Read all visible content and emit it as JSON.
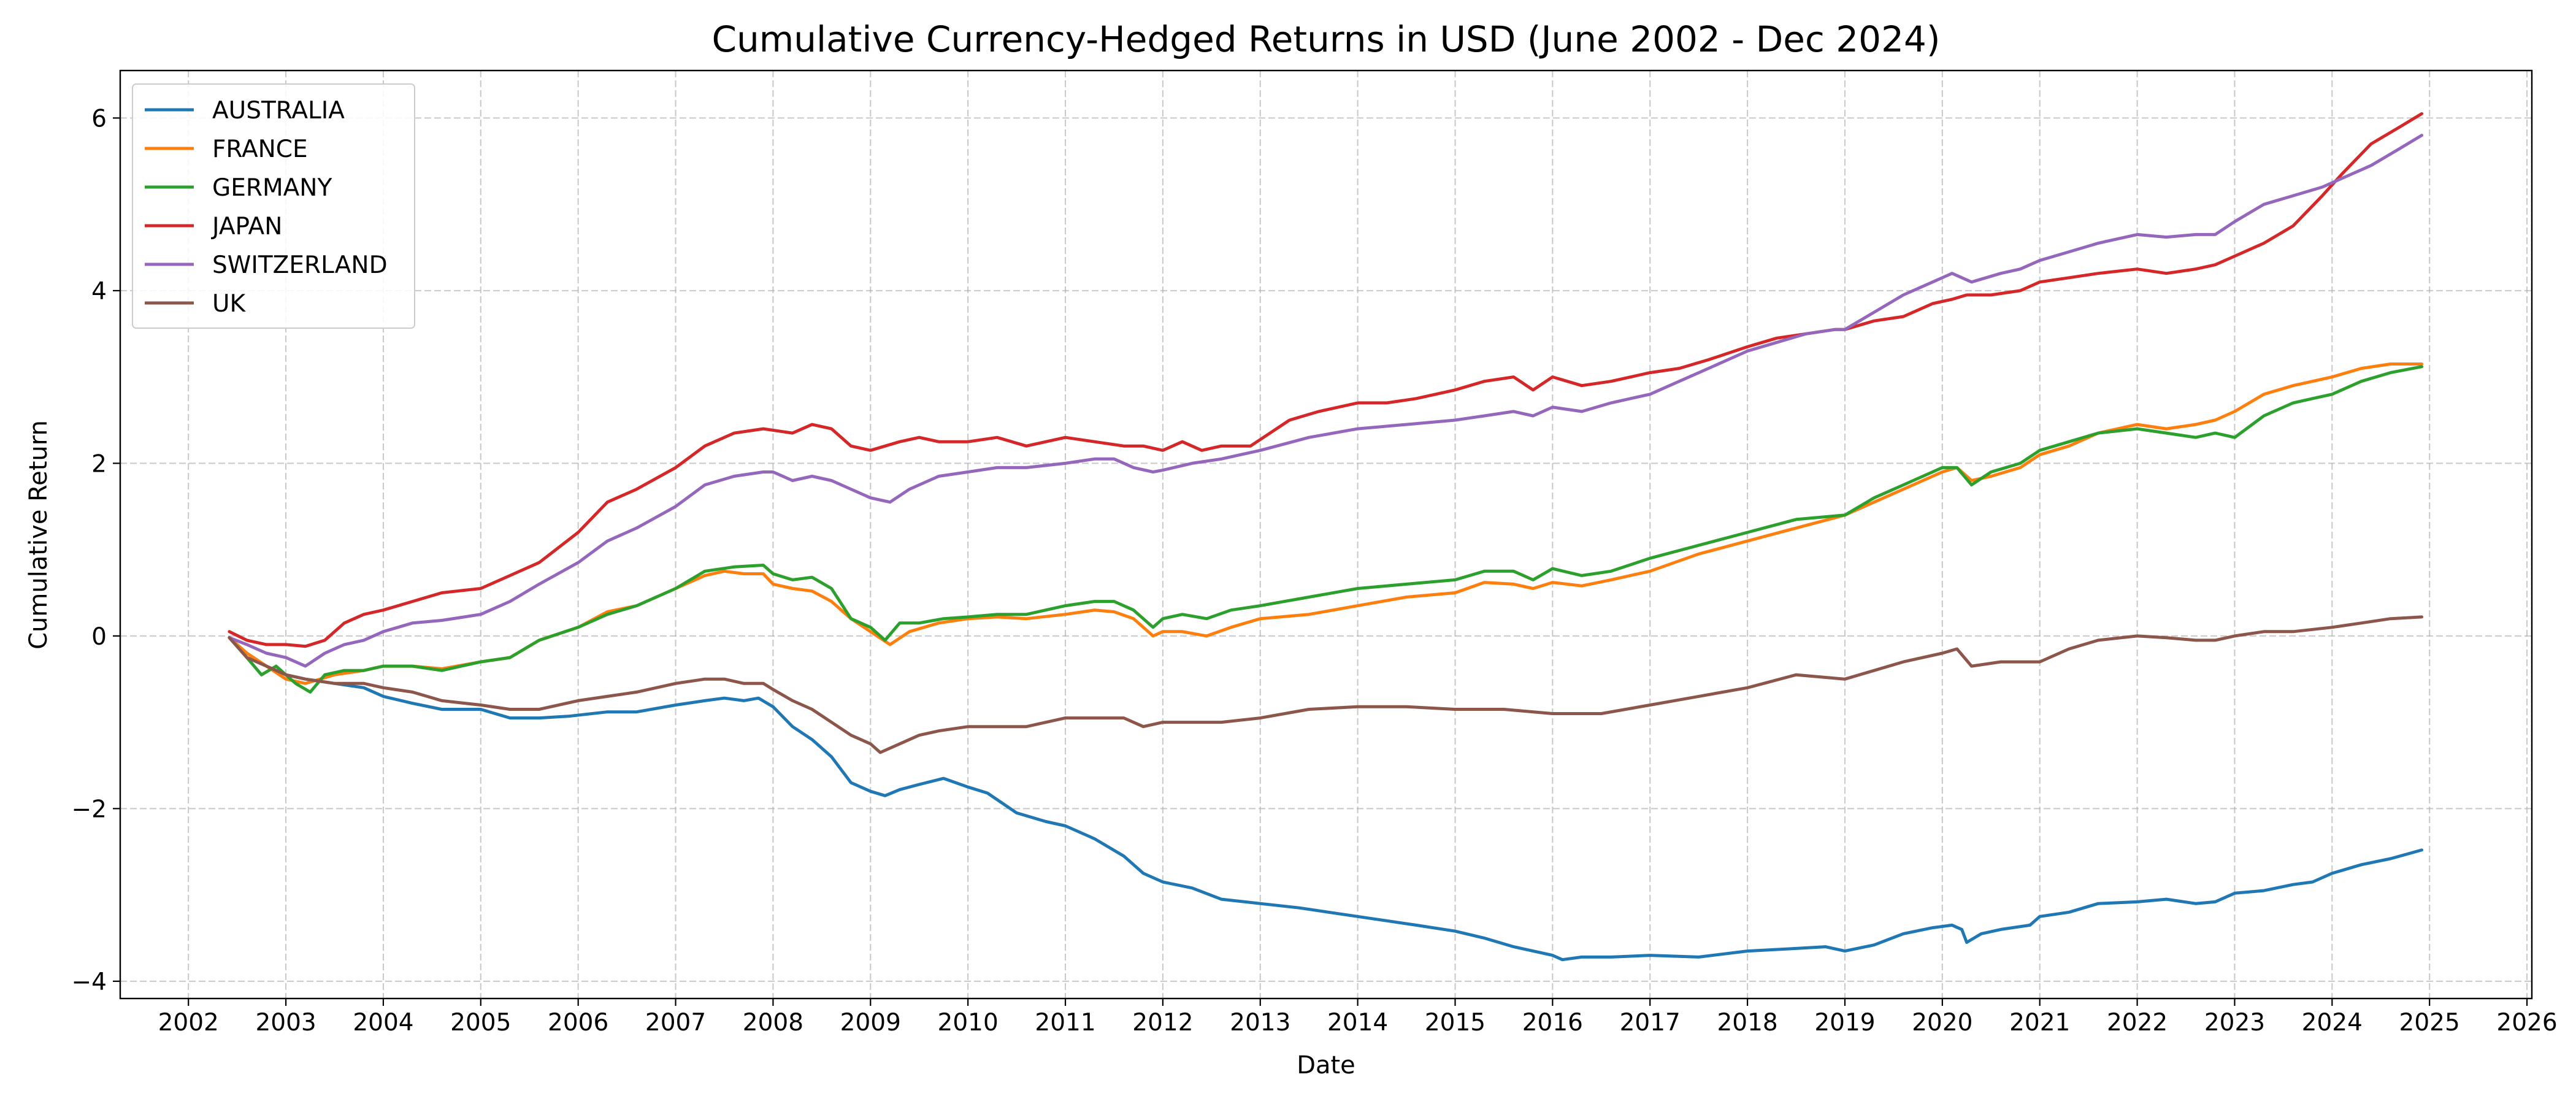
{
  "chart_data": {
    "type": "line",
    "title": "Cumulative Currency-Hedged Returns in USD (June 2002 - Dec 2024)",
    "xlabel": "Date",
    "ylabel": "Cumulative Return",
    "xlim": [
      2001.3,
      2026.05
    ],
    "ylim": [
      -4.2,
      6.55
    ],
    "x_ticks": [
      2002,
      2003,
      2004,
      2005,
      2006,
      2007,
      2008,
      2009,
      2010,
      2011,
      2012,
      2013,
      2014,
      2015,
      2016,
      2017,
      2018,
      2019,
      2020,
      2021,
      2022,
      2023,
      2024,
      2025,
      2026
    ],
    "x_tick_labels": [
      "2002",
      "2003",
      "2004",
      "2005",
      "2006",
      "2007",
      "2008",
      "2009",
      "2010",
      "2011",
      "2012",
      "2013",
      "2014",
      "2015",
      "2016",
      "2017",
      "2018",
      "2019",
      "2020",
      "2021",
      "2022",
      "2023",
      "2024",
      "2025",
      "2026"
    ],
    "y_ticks": [
      -4,
      -2,
      0,
      2,
      4,
      6
    ],
    "y_tick_labels": [
      "−4",
      "−2",
      "0",
      "2",
      "4",
      "6"
    ],
    "grid": true,
    "legend_position": "top-left",
    "series": [
      {
        "name": "AUSTRALIA",
        "color": "#1f77b4",
        "x": [
          2002.42,
          2002.6,
          2002.8,
          2003.0,
          2003.2,
          2003.5,
          2003.8,
          2004.0,
          2004.3,
          2004.6,
          2005.0,
          2005.3,
          2005.6,
          2005.9,
          2006.3,
          2006.6,
          2007.0,
          2007.3,
          2007.5,
          2007.7,
          2007.85,
          2008.0,
          2008.2,
          2008.4,
          2008.6,
          2008.8,
          2009.0,
          2009.15,
          2009.3,
          2009.5,
          2009.75,
          2010.0,
          2010.2,
          2010.5,
          2010.8,
          2011.0,
          2011.3,
          2011.6,
          2011.8,
          2012.0,
          2012.3,
          2012.6,
          2013.0,
          2013.4,
          2013.7,
          2014.0,
          2014.3,
          2014.6,
          2015.0,
          2015.3,
          2015.6,
          2016.0,
          2016.1,
          2016.3,
          2016.6,
          2017.0,
          2017.5,
          2018.0,
          2018.5,
          2018.8,
          2019.0,
          2019.3,
          2019.6,
          2019.9,
          2020.1,
          2020.2,
          2020.25,
          2020.4,
          2020.6,
          2020.9,
          2021.0,
          2021.3,
          2021.6,
          2022.0,
          2022.3,
          2022.6,
          2022.8,
          2023.0,
          2023.3,
          2023.6,
          2023.8,
          2024.0,
          2024.3,
          2024.6,
          2024.92
        ],
        "y": [
          -0.02,
          -0.2,
          -0.35,
          -0.45,
          -0.5,
          -0.55,
          -0.6,
          -0.7,
          -0.78,
          -0.85,
          -0.85,
          -0.95,
          -0.95,
          -0.93,
          -0.88,
          -0.88,
          -0.8,
          -0.75,
          -0.72,
          -0.75,
          -0.72,
          -0.82,
          -1.05,
          -1.2,
          -1.4,
          -1.7,
          -1.8,
          -1.85,
          -1.78,
          -1.72,
          -1.65,
          -1.75,
          -1.82,
          -2.05,
          -2.15,
          -2.2,
          -2.35,
          -2.55,
          -2.75,
          -2.85,
          -2.92,
          -3.05,
          -3.1,
          -3.15,
          -3.2,
          -3.25,
          -3.3,
          -3.35,
          -3.42,
          -3.5,
          -3.6,
          -3.7,
          -3.75,
          -3.72,
          -3.72,
          -3.7,
          -3.72,
          -3.65,
          -3.62,
          -3.6,
          -3.65,
          -3.58,
          -3.45,
          -3.38,
          -3.35,
          -3.4,
          -3.55,
          -3.45,
          -3.4,
          -3.35,
          -3.25,
          -3.2,
          -3.1,
          -3.08,
          -3.05,
          -3.1,
          -3.08,
          -2.98,
          -2.95,
          -2.88,
          -2.85,
          -2.75,
          -2.65,
          -2.58,
          -2.48
        ]
      },
      {
        "name": "FRANCE",
        "color": "#ff7f0e",
        "x": [
          2002.42,
          2002.6,
          2002.8,
          2003.0,
          2003.2,
          2003.5,
          2003.8,
          2004.0,
          2004.3,
          2004.6,
          2005.0,
          2005.3,
          2005.6,
          2006.0,
          2006.3,
          2006.6,
          2007.0,
          2007.3,
          2007.5,
          2007.7,
          2007.9,
          2008.0,
          2008.2,
          2008.4,
          2008.6,
          2008.8,
          2009.0,
          2009.2,
          2009.4,
          2009.7,
          2010.0,
          2010.3,
          2010.6,
          2011.0,
          2011.3,
          2011.5,
          2011.7,
          2011.9,
          2012.0,
          2012.2,
          2012.45,
          2012.7,
          2013.0,
          2013.5,
          2014.0,
          2014.5,
          2015.0,
          2015.3,
          2015.6,
          2015.8,
          2016.0,
          2016.3,
          2016.6,
          2017.0,
          2017.5,
          2018.0,
          2018.5,
          2019.0,
          2019.3,
          2019.6,
          2020.0,
          2020.15,
          2020.3,
          2020.5,
          2020.8,
          2021.0,
          2021.3,
          2021.6,
          2022.0,
          2022.3,
          2022.6,
          2022.8,
          2023.0,
          2023.3,
          2023.6,
          2023.8,
          2024.0,
          2024.3,
          2024.6,
          2024.92
        ],
        "y": [
          -0.02,
          -0.2,
          -0.35,
          -0.5,
          -0.55,
          -0.45,
          -0.4,
          -0.35,
          -0.35,
          -0.38,
          -0.3,
          -0.25,
          -0.05,
          0.1,
          0.28,
          0.35,
          0.55,
          0.7,
          0.75,
          0.72,
          0.72,
          0.6,
          0.55,
          0.52,
          0.4,
          0.2,
          0.05,
          -0.1,
          0.05,
          0.15,
          0.2,
          0.22,
          0.2,
          0.25,
          0.3,
          0.28,
          0.2,
          0.0,
          0.05,
          0.05,
          0.0,
          0.1,
          0.2,
          0.25,
          0.35,
          0.45,
          0.5,
          0.62,
          0.6,
          0.55,
          0.62,
          0.58,
          0.65,
          0.75,
          0.95,
          1.1,
          1.25,
          1.4,
          1.55,
          1.7,
          1.9,
          1.95,
          1.8,
          1.85,
          1.95,
          2.1,
          2.2,
          2.35,
          2.45,
          2.4,
          2.45,
          2.5,
          2.6,
          2.8,
          2.9,
          2.95,
          3.0,
          3.1,
          3.15,
          3.15
        ]
      },
      {
        "name": "GERMANY",
        "color": "#2ca02c",
        "x": [
          2002.42,
          2002.6,
          2002.75,
          2002.9,
          2003.0,
          2003.1,
          2003.25,
          2003.4,
          2003.6,
          2003.8,
          2004.0,
          2004.3,
          2004.6,
          2005.0,
          2005.3,
          2005.6,
          2006.0,
          2006.3,
          2006.6,
          2007.0,
          2007.3,
          2007.6,
          2007.9,
          2008.0,
          2008.2,
          2008.4,
          2008.6,
          2008.8,
          2009.0,
          2009.15,
          2009.3,
          2009.5,
          2009.75,
          2010.0,
          2010.3,
          2010.6,
          2011.0,
          2011.3,
          2011.5,
          2011.7,
          2011.9,
          2012.0,
          2012.2,
          2012.45,
          2012.7,
          2013.0,
          2013.5,
          2014.0,
          2014.5,
          2015.0,
          2015.3,
          2015.6,
          2015.8,
          2016.0,
          2016.3,
          2016.6,
          2017.0,
          2017.5,
          2018.0,
          2018.5,
          2019.0,
          2019.3,
          2019.6,
          2020.0,
          2020.15,
          2020.3,
          2020.5,
          2020.8,
          2021.0,
          2021.3,
          2021.6,
          2022.0,
          2022.3,
          2022.6,
          2022.8,
          2023.0,
          2023.3,
          2023.6,
          2023.8,
          2024.0,
          2024.3,
          2024.6,
          2024.92
        ],
        "y": [
          -0.02,
          -0.25,
          -0.45,
          -0.35,
          -0.45,
          -0.55,
          -0.65,
          -0.45,
          -0.4,
          -0.4,
          -0.35,
          -0.35,
          -0.4,
          -0.3,
          -0.25,
          -0.05,
          0.1,
          0.25,
          0.35,
          0.55,
          0.75,
          0.8,
          0.82,
          0.72,
          0.65,
          0.68,
          0.55,
          0.2,
          0.1,
          -0.05,
          0.15,
          0.15,
          0.2,
          0.22,
          0.25,
          0.25,
          0.35,
          0.4,
          0.4,
          0.3,
          0.1,
          0.2,
          0.25,
          0.2,
          0.3,
          0.35,
          0.45,
          0.55,
          0.6,
          0.65,
          0.75,
          0.75,
          0.65,
          0.78,
          0.7,
          0.75,
          0.9,
          1.05,
          1.2,
          1.35,
          1.4,
          1.6,
          1.75,
          1.95,
          1.95,
          1.75,
          1.9,
          2.0,
          2.15,
          2.25,
          2.35,
          2.4,
          2.35,
          2.3,
          2.35,
          2.3,
          2.55,
          2.7,
          2.75,
          2.8,
          2.95,
          3.05,
          3.12
        ]
      },
      {
        "name": "JAPAN",
        "color": "#d62728",
        "x": [
          2002.42,
          2002.6,
          2002.8,
          2003.0,
          2003.2,
          2003.4,
          2003.6,
          2003.8,
          2004.0,
          2004.3,
          2004.6,
          2005.0,
          2005.3,
          2005.6,
          2006.0,
          2006.3,
          2006.6,
          2007.0,
          2007.3,
          2007.6,
          2007.9,
          2008.2,
          2008.4,
          2008.6,
          2008.8,
          2009.0,
          2009.3,
          2009.5,
          2009.7,
          2010.0,
          2010.3,
          2010.6,
          2011.0,
          2011.3,
          2011.6,
          2011.8,
          2012.0,
          2012.2,
          2012.4,
          2012.6,
          2012.9,
          2013.1,
          2013.3,
          2013.6,
          2014.0,
          2014.3,
          2014.6,
          2015.0,
          2015.3,
          2015.6,
          2015.8,
          2016.0,
          2016.3,
          2016.6,
          2017.0,
          2017.3,
          2017.6,
          2018.0,
          2018.3,
          2018.6,
          2018.9,
          2019.0,
          2019.3,
          2019.6,
          2019.9,
          2020.1,
          2020.25,
          2020.5,
          2020.8,
          2021.0,
          2021.3,
          2021.6,
          2022.0,
          2022.3,
          2022.6,
          2022.8,
          2023.0,
          2023.3,
          2023.6,
          2023.9,
          2024.1,
          2024.4,
          2024.7,
          2024.92
        ],
        "y": [
          0.05,
          -0.05,
          -0.1,
          -0.1,
          -0.12,
          -0.05,
          0.15,
          0.25,
          0.3,
          0.4,
          0.5,
          0.55,
          0.7,
          0.85,
          1.2,
          1.55,
          1.7,
          1.95,
          2.2,
          2.35,
          2.4,
          2.35,
          2.45,
          2.4,
          2.2,
          2.15,
          2.25,
          2.3,
          2.25,
          2.25,
          2.3,
          2.2,
          2.3,
          2.25,
          2.2,
          2.2,
          2.15,
          2.25,
          2.15,
          2.2,
          2.2,
          2.35,
          2.5,
          2.6,
          2.7,
          2.7,
          2.75,
          2.85,
          2.95,
          3.0,
          2.85,
          3.0,
          2.9,
          2.95,
          3.05,
          3.1,
          3.2,
          3.35,
          3.45,
          3.5,
          3.55,
          3.55,
          3.65,
          3.7,
          3.85,
          3.9,
          3.95,
          3.95,
          4.0,
          4.1,
          4.15,
          4.2,
          4.25,
          4.2,
          4.25,
          4.3,
          4.4,
          4.55,
          4.75,
          5.1,
          5.35,
          5.7,
          5.9,
          6.05
        ]
      },
      {
        "name": "SWITZERLAND",
        "color": "#9467bd",
        "x": [
          2002.42,
          2002.6,
          2002.8,
          2003.0,
          2003.2,
          2003.4,
          2003.6,
          2003.8,
          2004.0,
          2004.3,
          2004.6,
          2005.0,
          2005.3,
          2005.6,
          2006.0,
          2006.3,
          2006.6,
          2007.0,
          2007.3,
          2007.6,
          2007.9,
          2008.0,
          2008.2,
          2008.4,
          2008.6,
          2008.8,
          2009.0,
          2009.2,
          2009.4,
          2009.7,
          2010.0,
          2010.3,
          2010.6,
          2011.0,
          2011.3,
          2011.5,
          2011.7,
          2011.9,
          2012.0,
          2012.3,
          2012.6,
          2013.0,
          2013.5,
          2014.0,
          2014.5,
          2015.0,
          2015.3,
          2015.6,
          2015.8,
          2016.0,
          2016.3,
          2016.6,
          2017.0,
          2017.3,
          2017.6,
          2018.0,
          2018.3,
          2018.6,
          2018.9,
          2019.0,
          2019.3,
          2019.6,
          2019.9,
          2020.1,
          2020.3,
          2020.6,
          2020.8,
          2021.0,
          2021.3,
          2021.6,
          2022.0,
          2022.3,
          2022.6,
          2022.8,
          2023.0,
          2023.3,
          2023.6,
          2023.9,
          2024.1,
          2024.4,
          2024.7,
          2024.92
        ],
        "y": [
          -0.02,
          -0.1,
          -0.2,
          -0.25,
          -0.35,
          -0.2,
          -0.1,
          -0.05,
          0.05,
          0.15,
          0.18,
          0.25,
          0.4,
          0.6,
          0.85,
          1.1,
          1.25,
          1.5,
          1.75,
          1.85,
          1.9,
          1.9,
          1.8,
          1.85,
          1.8,
          1.7,
          1.6,
          1.55,
          1.7,
          1.85,
          1.9,
          1.95,
          1.95,
          2.0,
          2.05,
          2.05,
          1.95,
          1.9,
          1.92,
          2.0,
          2.05,
          2.15,
          2.3,
          2.4,
          2.45,
          2.5,
          2.55,
          2.6,
          2.55,
          2.65,
          2.6,
          2.7,
          2.8,
          2.95,
          3.1,
          3.3,
          3.4,
          3.5,
          3.55,
          3.55,
          3.75,
          3.95,
          4.1,
          4.2,
          4.1,
          4.2,
          4.25,
          4.35,
          4.45,
          4.55,
          4.65,
          4.62,
          4.65,
          4.65,
          4.8,
          5.0,
          5.1,
          5.2,
          5.3,
          5.45,
          5.65,
          5.8
        ]
      },
      {
        "name": "UK",
        "color": "#8c564b",
        "x": [
          2002.42,
          2002.6,
          2002.8,
          2003.0,
          2003.2,
          2003.5,
          2003.8,
          2004.0,
          2004.3,
          2004.6,
          2005.0,
          2005.3,
          2005.6,
          2006.0,
          2006.3,
          2006.6,
          2007.0,
          2007.3,
          2007.5,
          2007.7,
          2007.9,
          2008.0,
          2008.2,
          2008.4,
          2008.6,
          2008.8,
          2009.0,
          2009.1,
          2009.3,
          2009.5,
          2009.7,
          2010.0,
          2010.3,
          2010.6,
          2011.0,
          2011.3,
          2011.6,
          2011.8,
          2012.0,
          2012.3,
          2012.6,
          2013.0,
          2013.5,
          2014.0,
          2014.5,
          2015.0,
          2015.5,
          2016.0,
          2016.5,
          2017.0,
          2017.5,
          2018.0,
          2018.5,
          2019.0,
          2019.3,
          2019.6,
          2020.0,
          2020.15,
          2020.3,
          2020.6,
          2021.0,
          2021.3,
          2021.6,
          2022.0,
          2022.3,
          2022.6,
          2022.8,
          2023.0,
          2023.3,
          2023.6,
          2024.0,
          2024.3,
          2024.6,
          2024.92
        ],
        "y": [
          -0.02,
          -0.25,
          -0.35,
          -0.45,
          -0.5,
          -0.55,
          -0.55,
          -0.6,
          -0.65,
          -0.75,
          -0.8,
          -0.85,
          -0.85,
          -0.75,
          -0.7,
          -0.65,
          -0.55,
          -0.5,
          -0.5,
          -0.55,
          -0.55,
          -0.62,
          -0.75,
          -0.85,
          -1.0,
          -1.15,
          -1.25,
          -1.35,
          -1.25,
          -1.15,
          -1.1,
          -1.05,
          -1.05,
          -1.05,
          -0.95,
          -0.95,
          -0.95,
          -1.05,
          -1.0,
          -1.0,
          -1.0,
          -0.95,
          -0.85,
          -0.82,
          -0.82,
          -0.85,
          -0.85,
          -0.9,
          -0.9,
          -0.8,
          -0.7,
          -0.6,
          -0.45,
          -0.5,
          -0.4,
          -0.3,
          -0.2,
          -0.15,
          -0.35,
          -0.3,
          -0.3,
          -0.15,
          -0.05,
          0.0,
          -0.02,
          -0.05,
          -0.05,
          0.0,
          0.05,
          0.05,
          0.1,
          0.15,
          0.2,
          0.22
        ]
      }
    ]
  }
}
